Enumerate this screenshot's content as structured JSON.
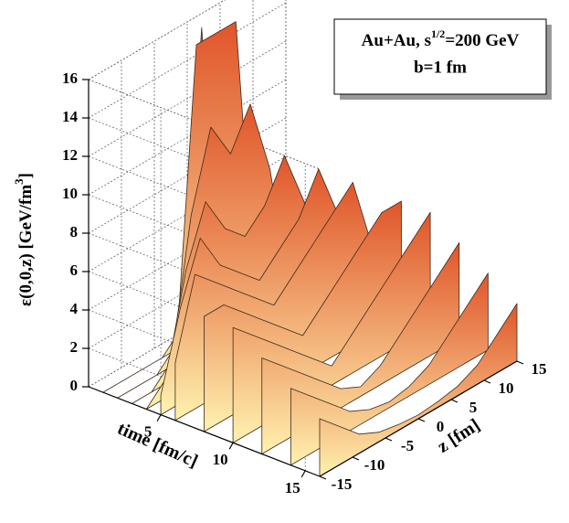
{
  "chart_data": {
    "type": "surface",
    "legend": {
      "line1_pre": "Au+Au, s",
      "line1_sup": "1/2",
      "line1_post": "=200 GeV",
      "line2": "b=1 fm"
    },
    "ylabel": {
      "main": "ε(0,0,z) [GeV/fm",
      "sup": "3",
      "end": "]"
    },
    "xlabel": "time [fm/c]",
    "zlabel": "z [fm]",
    "xlim": [
      0,
      16
    ],
    "xticks": [
      5,
      10,
      15
    ],
    "zlim": [
      -15,
      15
    ],
    "zticks": [
      -15,
      -10,
      -5,
      0,
      5,
      10,
      15
    ],
    "ylim": [
      0,
      16
    ],
    "yticks": [
      0,
      2,
      4,
      6,
      8,
      10,
      12,
      14,
      16
    ],
    "grid": true,
    "colors": {
      "low": "#fff2b0",
      "high": "#e0552a",
      "edge": "#3a2a1a"
    },
    "x": [
      1,
      2,
      3,
      4,
      5,
      6,
      8,
      10,
      12,
      14,
      16
    ],
    "z": [
      -15,
      -12,
      -9,
      -6,
      -3,
      0,
      3,
      6,
      9,
      12,
      15
    ],
    "surface": [
      [
        0,
        0,
        0,
        0,
        1,
        16,
        1,
        0,
        0,
        0,
        0
      ],
      [
        0,
        0,
        0,
        1,
        16,
        16,
        16,
        1,
        0,
        0,
        0
      ],
      [
        0,
        0,
        1,
        8,
        12,
        10,
        12,
        8,
        1,
        0,
        0
      ],
      [
        0,
        1,
        6,
        9,
        7,
        6,
        7,
        9,
        6,
        1,
        0
      ],
      [
        1,
        5,
        8,
        6,
        5,
        4,
        5,
        6,
        8,
        5,
        1
      ],
      [
        3,
        7,
        6,
        5,
        4,
        3,
        4,
        5,
        6,
        7,
        3
      ],
      [
        6,
        6,
        5,
        4,
        3,
        2,
        3,
        4,
        5,
        6,
        6
      ],
      [
        6,
        5,
        4,
        3,
        2,
        1,
        2,
        3,
        4,
        5,
        6
      ],
      [
        5,
        4,
        3,
        2,
        1,
        0.5,
        1,
        2,
        3,
        4,
        5
      ],
      [
        4,
        3,
        2,
        1,
        0.5,
        0.3,
        0.5,
        1,
        2,
        3,
        4
      ],
      [
        3,
        2,
        1,
        0.5,
        0.3,
        0.2,
        0.3,
        0.5,
        1,
        2,
        3
      ]
    ]
  }
}
